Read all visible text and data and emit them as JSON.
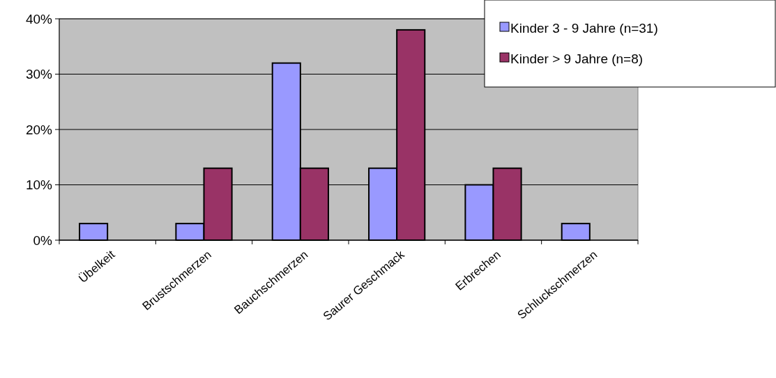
{
  "chart_data": {
    "type": "bar",
    "categories": [
      "Übelkeit",
      "Brustschmerzen",
      "Bauchschmerzen",
      "Saurer Geschmack",
      "Erbrechen",
      "Schluckschmerzen"
    ],
    "series": [
      {
        "name": "Kinder 3 - 9 Jahre (n=31)",
        "color": "#9999ff",
        "values": [
          3,
          3,
          32,
          13,
          10,
          3
        ]
      },
      {
        "name": "Kinder > 9 Jahre (n=8)",
        "color": "#993366",
        "values": [
          null,
          13,
          13,
          38,
          13,
          null
        ]
      }
    ],
    "ylim": [
      0,
      40
    ],
    "yticks": [
      {
        "value": 0,
        "label": "0%"
      },
      {
        "value": 10,
        "label": "10%"
      },
      {
        "value": 20,
        "label": "20%"
      },
      {
        "value": 30,
        "label": "30%"
      },
      {
        "value": 40,
        "label": "40%"
      }
    ],
    "grid": "y",
    "legend": "top right"
  }
}
